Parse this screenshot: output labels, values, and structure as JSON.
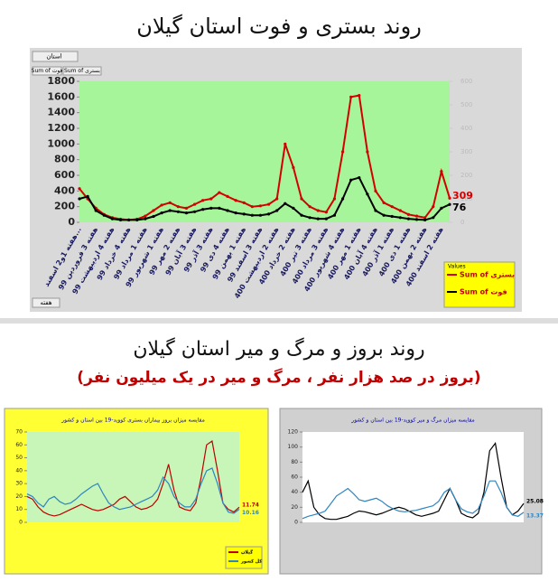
{
  "sections": {
    "title2": "روند بروز و مرگ و میر استان گیلان",
    "subtitle2": "(بروز در صد هزار نفر ، مرگ و میر در یک میلیون نفر)"
  },
  "chart_data": [
    {
      "type": "line",
      "title": "روند بستری و فوت استان گیلان",
      "filter_label": "استان",
      "field_buttons": [
        "Sum of فوت",
        "Sum of بستری"
      ],
      "axis_field": "هفته",
      "legend_title": "Values",
      "categories": [
        "هفته 1و2 اسفند...",
        null,
        "هفته 3 فروردین 99",
        null,
        "هفته 4 اردیبهشت 99",
        null,
        "هفته 4 خرداد 99",
        null,
        "هفته 1 مرداد 99",
        null,
        "هفته 1 شهریور 99",
        null,
        "هفته 2 مهر 99",
        null,
        "هفته 3 آبان 99",
        null,
        "هفته 3 آذر 99",
        null,
        "هفته 4 دی 99",
        null,
        "هفته 1 بهمن 99",
        null,
        "هفته 3 اسفند 99",
        null,
        "هفته 2 اردیبهشت 400",
        null,
        "هفته 2 خرداد 400",
        null,
        "هفته 3 تیر 400",
        null,
        "هفته 3 مرداد 400",
        null,
        "هفته 4 شهریور 400",
        null,
        "هفته 1 مهر 400",
        null,
        "هفته 4 آبان 400",
        null,
        "هفته 1 آذر 400",
        null,
        "هفته 1 دی 400",
        null,
        "هفته 2 بهمن 400",
        null,
        "هفته 2 اسفند 400",
        null
      ],
      "series": [
        {
          "name": "Sum of بستری",
          "color": "#d40000",
          "values": [
            430,
            300,
            180,
            100,
            60,
            40,
            30,
            40,
            80,
            150,
            220,
            250,
            200,
            180,
            230,
            280,
            300,
            380,
            330,
            280,
            250,
            200,
            210,
            230,
            300,
            1000,
            700,
            300,
            200,
            150,
            130,
            300,
            900,
            1600,
            1620,
            900,
            400,
            250,
            200,
            150,
            100,
            80,
            60,
            200,
            650,
            309
          ]
        },
        {
          "name": "Sum of فوت",
          "color": "#000000",
          "axis": "y2",
          "values": [
            100,
            110,
            50,
            30,
            15,
            10,
            10,
            10,
            15,
            25,
            40,
            50,
            45,
            40,
            45,
            55,
            60,
            60,
            50,
            40,
            35,
            30,
            30,
            35,
            50,
            80,
            60,
            30,
            20,
            15,
            15,
            30,
            100,
            180,
            190,
            120,
            50,
            30,
            25,
            20,
            15,
            12,
            10,
            20,
            60,
            76
          ]
        }
      ],
      "ylim": [
        0,
        1800
      ],
      "yticks": [
        0,
        200,
        400,
        600,
        800,
        1000,
        1200,
        1400,
        1600,
        1800
      ],
      "y2lim": [
        0,
        600
      ],
      "y2ticks": [
        0,
        100,
        200,
        300,
        400,
        500,
        600
      ],
      "plot_bg": "#a6f59a",
      "legend": "bottom-right"
    },
    {
      "type": "line",
      "title": "مقایسه میزان بروز بیماران بستری کووید-19 بین استان و کشور",
      "series": [
        {
          "name": "گیلان",
          "color": "#c00000",
          "values": [
            20,
            18,
            12,
            8,
            6,
            5,
            6,
            8,
            10,
            12,
            14,
            12,
            10,
            9,
            10,
            12,
            14,
            18,
            20,
            16,
            12,
            10,
            11,
            13,
            18,
            30,
            45,
            25,
            12,
            10,
            9,
            15,
            35,
            60,
            63,
            40,
            15,
            10,
            8,
            11.74
          ]
        },
        {
          "name": "کل کشور",
          "color": "#2e86c1",
          "values": [
            22,
            20,
            15,
            12,
            18,
            20,
            16,
            14,
            15,
            18,
            22,
            25,
            28,
            30,
            22,
            15,
            12,
            10,
            11,
            12,
            14,
            16,
            18,
            20,
            25,
            35,
            30,
            20,
            15,
            12,
            12,
            18,
            30,
            40,
            42,
            30,
            15,
            8,
            7,
            10.16
          ]
        }
      ],
      "ylim": [
        0,
        70
      ],
      "yticks": [
        0,
        10,
        20,
        30,
        40,
        50,
        60,
        70
      ],
      "plot_bg": "#c8f5b8",
      "legend": "bottom-right"
    },
    {
      "type": "line",
      "title": "مقایسه میزان مرگ و میر کووید-19 بین استان و کشور",
      "series": [
        {
          "name": "گیلان",
          "color": "#000000",
          "values": [
            40,
            55,
            20,
            10,
            5,
            4,
            4,
            6,
            8,
            12,
            15,
            14,
            12,
            10,
            12,
            15,
            18,
            20,
            18,
            14,
            10,
            8,
            10,
            12,
            15,
            30,
            45,
            30,
            12,
            8,
            6,
            12,
            40,
            95,
            105,
            60,
            20,
            10,
            15,
            25.08
          ]
        },
        {
          "name": "کل کشور",
          "color": "#2e86c1",
          "values": [
            5,
            8,
            10,
            12,
            15,
            25,
            35,
            40,
            45,
            38,
            30,
            28,
            30,
            32,
            28,
            22,
            18,
            15,
            14,
            15,
            16,
            18,
            20,
            22,
            28,
            40,
            45,
            30,
            18,
            14,
            12,
            18,
            35,
            55,
            55,
            40,
            20,
            10,
            8,
            13.37
          ]
        }
      ],
      "ylim": [
        0,
        120
      ],
      "yticks": [
        0,
        20,
        40,
        60,
        80,
        100,
        120
      ],
      "plot_bg": "#ffffff"
    }
  ]
}
